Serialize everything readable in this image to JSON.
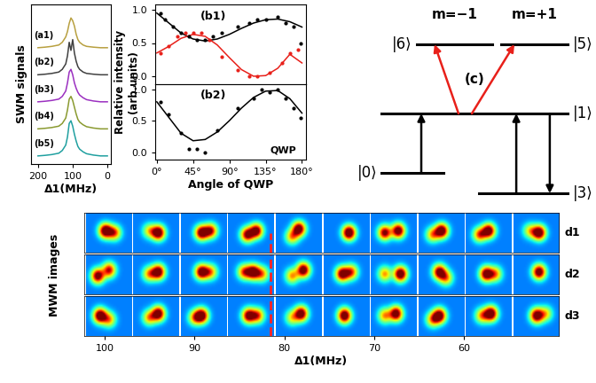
{
  "chart_data": [
    {
      "type": "line",
      "xlabel": "Δ1(MHz)",
      "ylabel": "SWM signals",
      "tick_labels": "x",
      "x": [
        200,
        180,
        160,
        140,
        130,
        120,
        115,
        110,
        105,
        100,
        95,
        90,
        85,
        80,
        70,
        60,
        40,
        20,
        0
      ],
      "xlim": [
        220,
        -10
      ],
      "xticks": [
        200,
        100,
        0
      ],
      "ylim": [
        0.3,
        6.2
      ],
      "series": [
        {
          "name": "(a1)",
          "color": "#b8a040",
          "values": [
            4.6,
            4.62,
            4.65,
            4.7,
            4.8,
            5.0,
            5.2,
            5.5,
            5.7,
            5.6,
            5.4,
            5.1,
            4.9,
            4.8,
            4.7,
            4.65,
            4.62,
            4.6,
            4.6
          ]
        },
        {
          "name": "(b2)",
          "color": "#404040",
          "values": [
            3.6,
            3.62,
            3.65,
            3.7,
            3.8,
            4.0,
            4.3,
            4.8,
            4.5,
            4.9,
            4.4,
            4.1,
            3.9,
            3.8,
            3.7,
            3.65,
            3.62,
            3.6,
            3.6
          ]
        },
        {
          "name": "(b3)",
          "color": "#9b30c0",
          "values": [
            2.6,
            2.62,
            2.65,
            2.7,
            2.8,
            3.0,
            3.3,
            3.7,
            3.8,
            3.6,
            3.3,
            3.1,
            2.95,
            2.85,
            2.75,
            2.68,
            2.63,
            2.6,
            2.6
          ]
        },
        {
          "name": "(b4)",
          "color": "#8a9a30",
          "values": [
            1.6,
            1.62,
            1.65,
            1.7,
            1.8,
            2.0,
            2.3,
            2.7,
            2.8,
            2.65,
            2.4,
            2.15,
            1.95,
            1.85,
            1.75,
            1.68,
            1.63,
            1.6,
            1.6
          ]
        },
        {
          "name": "(b5)",
          "color": "#20a0a0",
          "values": [
            0.6,
            0.62,
            0.65,
            0.7,
            0.8,
            1.0,
            1.3,
            1.8,
            1.9,
            1.7,
            1.4,
            1.15,
            0.95,
            0.85,
            0.75,
            0.68,
            0.63,
            0.6,
            0.6
          ]
        }
      ]
    },
    {
      "type": "line",
      "label": "(b1)",
      "ylabel": "Relative intensity\n(arb.units)",
      "tick_labels": "y",
      "xlim": [
        -2,
        185
      ],
      "xticks": [
        0,
        45,
        90,
        135,
        180
      ],
      "ylim": [
        -0.12,
        1.08
      ],
      "yticks": [
        {
          "value": 0,
          "label": "0.0"
        },
        {
          "value": 0.5,
          "label": "0.5"
        },
        {
          "value": 1,
          "label": "1.0"
        }
      ],
      "series": [
        {
          "type": "line",
          "color": "#000000",
          "x": [
            0,
            15,
            30,
            45,
            60,
            75,
            90,
            105,
            120,
            135,
            150,
            165,
            180
          ],
          "values": [
            0.95,
            0.8,
            0.65,
            0.56,
            0.53,
            0.56,
            0.63,
            0.72,
            0.8,
            0.85,
            0.86,
            0.82,
            0.74
          ]
        },
        {
          "type": "line",
          "color": "#e8201a",
          "x": [
            0,
            15,
            30,
            45,
            60,
            75,
            90,
            105,
            120,
            135,
            150,
            165,
            180
          ],
          "values": [
            0.35,
            0.45,
            0.57,
            0.63,
            0.6,
            0.47,
            0.28,
            0.1,
            0.0,
            0.01,
            0.12,
            0.33,
            0.2
          ]
        },
        {
          "type": "scatter",
          "marker": "o",
          "color": "#000000",
          "x": [
            5,
            10,
            20,
            30,
            40,
            50,
            60,
            70,
            80,
            100,
            115,
            125,
            135,
            150,
            160,
            170,
            178
          ],
          "values": [
            0.95,
            0.85,
            0.75,
            0.65,
            0.6,
            0.55,
            0.55,
            0.6,
            0.65,
            0.75,
            0.8,
            0.85,
            0.85,
            0.9,
            0.8,
            0.75,
            0.5
          ]
        },
        {
          "type": "scatter",
          "marker": "o",
          "color": "#e8201a",
          "x": [
            5,
            15,
            25,
            35,
            45,
            55,
            65,
            80,
            100,
            115,
            125,
            140,
            155,
            165,
            175
          ],
          "values": [
            0.35,
            0.45,
            0.6,
            0.65,
            0.65,
            0.65,
            0.55,
            0.3,
            0.1,
            0.0,
            0.0,
            0.05,
            0.2,
            0.35,
            0.4
          ]
        }
      ]
    },
    {
      "type": "line",
      "label": "(b2)",
      "annotation": "QWP",
      "xlabel": "Angle of QWP",
      "xlim": [
        -2,
        185
      ],
      "xticks": [
        {
          "value": 0,
          "label": "0°"
        },
        {
          "value": 45,
          "label": "45°"
        },
        {
          "value": 90,
          "label": "90°"
        },
        {
          "value": 135,
          "label": "135°"
        },
        {
          "value": 180,
          "label": "180°"
        }
      ],
      "ylim": [
        -0.12,
        1.08
      ],
      "yticks": [
        {
          "value": 0,
          "label": "0.0"
        },
        {
          "value": 0.5,
          "label": "0.5"
        },
        {
          "value": 1,
          "label": "1.0"
        }
      ],
      "series": [
        {
          "type": "line",
          "color": "#000000",
          "x": [
            0,
            15,
            30,
            45,
            60,
            75,
            90,
            105,
            120,
            135,
            150,
            165,
            180
          ],
          "values": [
            0.8,
            0.55,
            0.3,
            0.18,
            0.2,
            0.32,
            0.5,
            0.7,
            0.87,
            0.97,
            0.98,
            0.85,
            0.62
          ]
        },
        {
          "type": "scatter",
          "marker": "o",
          "color": "#000000",
          "x": [
            5,
            15,
            30,
            40,
            50,
            60,
            75,
            100,
            120,
            130,
            140,
            150,
            160,
            170,
            178
          ],
          "values": [
            0.8,
            0.6,
            0.3,
            0.05,
            0.05,
            0.0,
            0.35,
            0.7,
            0.85,
            1.0,
            0.95,
            1.0,
            0.85,
            0.7,
            0.55
          ]
        }
      ]
    },
    {
      "type": "image",
      "xlabel": "Δ1(MHz)",
      "ylabel": "MWM images",
      "tick_labels": "x",
      "xlim": [
        102.3,
        49.4
      ],
      "xticks": [
        100,
        90,
        80,
        70,
        60
      ],
      "color_range": [
        0,
        1
      ],
      "background": 0.25,
      "image_width": 5.1,
      "centers": [
        99.6,
        94.3,
        89.0,
        83.7,
        78.4,
        73.1,
        67.8,
        62.5,
        57.2,
        51.9
      ],
      "reference_line": {
        "x": 81.5,
        "color": "#ff2020",
        "line_style": "dashed"
      },
      "rows": [
        {
          "name": "d1",
          "spots": [
            [
              [
                0.42,
                0.45,
                0.95
              ],
              [
                0.62,
                0.5,
                0.6
              ]
            ],
            [
              [
                0.55,
                0.5,
                0.95
              ],
              [
                0.35,
                0.45,
                0.4
              ]
            ],
            [
              [
                0.45,
                0.5,
                0.9
              ],
              [
                0.65,
                0.45,
                0.7
              ]
            ],
            [
              [
                0.42,
                0.55,
                0.8
              ],
              [
                0.62,
                0.45,
                0.85
              ]
            ],
            [
              [
                0.5,
                0.4,
                0.9
              ],
              [
                0.35,
                0.6,
                0.5
              ]
            ],
            [
              [
                0.55,
                0.5,
                1.0
              ]
            ],
            [
              [
                0.3,
                0.5,
                0.8
              ],
              [
                0.6,
                0.45,
                0.9
              ]
            ],
            [
              [
                0.5,
                0.45,
                0.95
              ],
              [
                0.3,
                0.55,
                0.5
              ]
            ],
            [
              [
                0.5,
                0.45,
                0.9
              ],
              [
                0.3,
                0.55,
                0.6
              ]
            ],
            [
              [
                0.55,
                0.5,
                0.95
              ],
              [
                0.35,
                0.45,
                0.4
              ]
            ]
          ]
        },
        {
          "name": "d2",
          "spots": [
            [
              [
                0.25,
                0.55,
                0.85
              ],
              [
                0.5,
                0.4,
                0.7
              ]
            ],
            [
              [
                0.55,
                0.45,
                0.9
              ],
              [
                0.35,
                0.5,
                0.5
              ]
            ],
            [
              [
                0.45,
                0.45,
                0.9
              ],
              [
                0.65,
                0.45,
                0.5
              ]
            ],
            [
              [
                0.35,
                0.45,
                0.6
              ],
              [
                0.55,
                0.45,
                0.9
              ],
              [
                0.75,
                0.5,
                0.5
              ]
            ],
            [
              [
                0.6,
                0.4,
                0.9
              ],
              [
                0.35,
                0.55,
                0.5
              ]
            ],
            [
              [
                0.4,
                0.5,
                0.85
              ],
              [
                0.6,
                0.45,
                0.6
              ]
            ],
            [
              [
                0.3,
                0.5,
                0.5
              ],
              [
                0.65,
                0.5,
                0.95
              ]
            ],
            [
              [
                0.45,
                0.45,
                0.85
              ],
              [
                0.6,
                0.6,
                0.5
              ]
            ],
            [
              [
                0.45,
                0.5,
                0.9
              ],
              [
                0.65,
                0.5,
                0.5
              ]
            ],
            [
              [
                0.55,
                0.45,
                0.9
              ]
            ]
          ]
        },
        {
          "name": "d3",
          "spots": [
            [
              [
                0.3,
                0.5,
                0.95
              ],
              [
                0.5,
                0.6,
                0.5
              ]
            ],
            [
              [
                0.55,
                0.45,
                0.9
              ],
              [
                0.35,
                0.55,
                0.5
              ]
            ],
            [
              [
                0.45,
                0.5,
                0.9
              ],
              [
                0.3,
                0.55,
                0.5
              ]
            ],
            [
              [
                0.45,
                0.5,
                0.85
              ],
              [
                0.65,
                0.5,
                0.6
              ]
            ],
            [
              [
                0.55,
                0.45,
                0.9
              ],
              [
                0.35,
                0.55,
                0.4
              ]
            ],
            [
              [
                0.45,
                0.5,
                0.95
              ]
            ],
            [
              [
                0.55,
                0.45,
                0.9
              ],
              [
                0.3,
                0.5,
                0.5
              ]
            ],
            [
              [
                0.45,
                0.5,
                0.9
              ],
              [
                0.3,
                0.6,
                0.5
              ]
            ],
            [
              [
                0.55,
                0.45,
                0.95
              ],
              [
                0.35,
                0.5,
                0.5
              ]
            ],
            [
              [
                0.5,
                0.5,
                0.9
              ],
              [
                0.7,
                0.45,
                0.4
              ]
            ]
          ]
        }
      ]
    }
  ],
  "diagram": {
    "label": "(c)",
    "levels": [
      "|0⟩",
      "|1⟩",
      "|3⟩",
      "|5⟩",
      "|6⟩"
    ],
    "sublevels": [
      "m=+1",
      "m=−1"
    ]
  }
}
